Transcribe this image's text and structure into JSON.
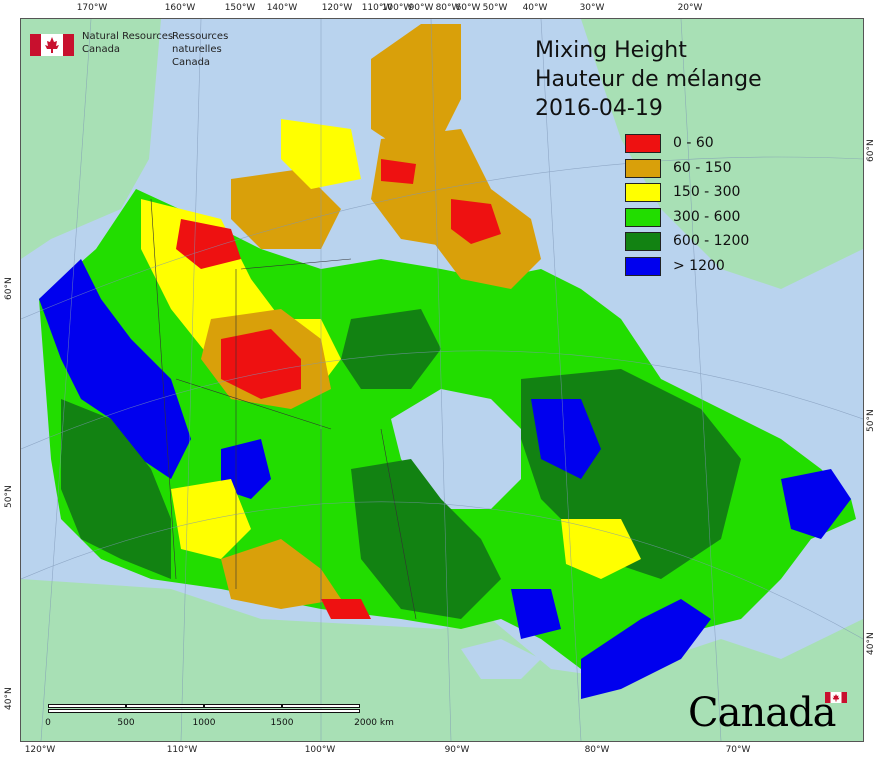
{
  "title": {
    "line1": "Mixing Height",
    "line2": "Hauteur de mélange",
    "date": "2016-04-19"
  },
  "organization": {
    "english_line1": "Natural Resources",
    "english_line2": "Canada",
    "french_line1": "Ressources naturelles",
    "french_line2": "Canada"
  },
  "legend": [
    {
      "label": "0 - 60",
      "color": "#ee1111"
    },
    {
      "label": "60 - 150",
      "color": "#d9a00a"
    },
    {
      "label": "150 - 300",
      "color": "#ffff00"
    },
    {
      "label": "300 - 600",
      "color": "#22dd00"
    },
    {
      "label": "600 - 1200",
      "color": "#128212"
    },
    {
      "label": "> 1200",
      "color": "#0000ee"
    }
  ],
  "top_ticks": [
    "170°W",
    "160°W",
    "150°W",
    "140°W",
    "120°W",
    "110°W",
    "100°W",
    "90°W",
    "80°W",
    "60°W",
    "50°W",
    "40°W",
    "30°W",
    "20°W"
  ],
  "bottom_ticks": [
    "120°W",
    "110°W",
    "100°W",
    "90°W",
    "80°W",
    "70°W"
  ],
  "left_ticks": [
    "60°N",
    "50°N",
    "40°N"
  ],
  "right_ticks": [
    "60°N",
    "50°N",
    "40°N"
  ],
  "scale": {
    "labels": [
      "0",
      "500",
      "1000",
      "1500",
      "2000 km"
    ]
  },
  "wordmark": "Canada",
  "colors": {
    "water": "#b9d3ee",
    "foreign_land": "#a8e0b5"
  }
}
